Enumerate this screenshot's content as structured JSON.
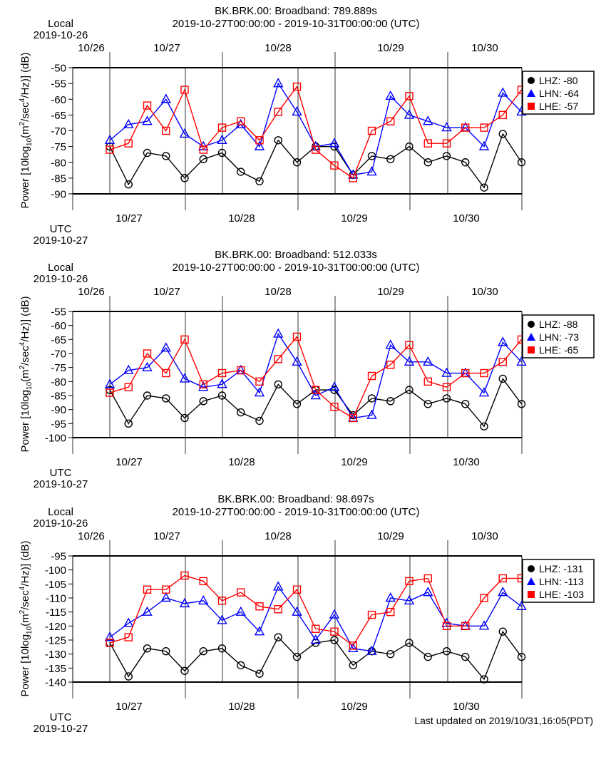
{
  "colors": {
    "LHZ": "#000000",
    "LHN": "#0000ff",
    "LHE": "#ff0000"
  },
  "labels": {
    "local": "Local",
    "local_date": "2019-10-26",
    "utc": "UTC",
    "utc_date": "2019-10-27",
    "ylabel_prefix": "Power [10log",
    "ylabel_sub": "10",
    "ylabel_mid": "(m",
    "ylabel_sup1": "2",
    "ylabel_mid2": "/sec",
    "ylabel_sup2": "4",
    "ylabel_suffix": "/Hz)] (dB)",
    "local_ticks": [
      "10/26",
      "10/27",
      "10/28",
      "10/29",
      "10/30"
    ],
    "utc_ticks": [
      "10/27",
      "10/28",
      "10/29",
      "10/30"
    ]
  },
  "footer": "Last updated on 2019/10/31,16:05(PDT)",
  "chart_data": [
    {
      "type": "line",
      "title": "BK.BRK.00: Broadband: 789.889s",
      "subtitle": "2019-10-27T00:00:00 - 2019-10-31T00:00:00 (UTC)",
      "ylim": [
        -90,
        -50
      ],
      "yticks": [
        -50,
        -55,
        -60,
        -65,
        -70,
        -75,
        -80,
        -85,
        -90
      ],
      "series": [
        {
          "name": "LHZ",
          "legend": "LHZ: -80",
          "marker": "circle",
          "values": [
            -75,
            -87,
            -77,
            -78,
            -85,
            -79,
            -77,
            -83,
            -86,
            -73,
            -80,
            -75,
            -75,
            -84,
            -78,
            -79,
            -75,
            -80,
            -78,
            -80,
            -88,
            -71,
            -80
          ]
        },
        {
          "name": "LHN",
          "legend": "LHN: -64",
          "marker": "triangle",
          "values": [
            -73,
            -68,
            -67,
            -60,
            -71,
            -75,
            -73,
            -68,
            -75,
            -55,
            -64,
            -75,
            -74,
            -84,
            -83,
            -59,
            -65,
            -67,
            -69,
            -69,
            -75,
            -58,
            -64
          ]
        },
        {
          "name": "LHE",
          "legend": "LHE: -57",
          "marker": "square",
          "values": [
            -76,
            -74,
            -62,
            -70,
            -57,
            -76,
            -69,
            -67,
            -73,
            -64,
            -56,
            -76,
            -81,
            -85,
            -70,
            -67,
            -59,
            -74,
            -74,
            -69,
            -69,
            -65,
            -57
          ]
        }
      ]
    },
    {
      "type": "line",
      "title": "BK.BRK.00: Broadband: 512.033s",
      "subtitle": "2019-10-27T00:00:00 - 2019-10-31T00:00:00 (UTC)",
      "ylim": [
        -100,
        -55
      ],
      "yticks": [
        -55,
        -60,
        -65,
        -70,
        -75,
        -80,
        -85,
        -90,
        -95,
        -100
      ],
      "series": [
        {
          "name": "LHZ",
          "legend": "LHZ: -88",
          "marker": "circle",
          "values": [
            -83,
            -95,
            -85,
            -86,
            -93,
            -87,
            -85,
            -91,
            -94,
            -81,
            -88,
            -83,
            -83,
            -92,
            -86,
            -87,
            -83,
            -88,
            -86,
            -88,
            -96,
            -79,
            -88
          ]
        },
        {
          "name": "LHN",
          "legend": "LHN: -73",
          "marker": "triangle",
          "values": [
            -81,
            -76,
            -75,
            -68,
            -79,
            -82,
            -81,
            -76,
            -84,
            -63,
            -73,
            -85,
            -82,
            -93,
            -92,
            -67,
            -73,
            -73,
            -77,
            -77,
            -84,
            -66,
            -73
          ]
        },
        {
          "name": "LHE",
          "legend": "LHE: -65",
          "marker": "square",
          "values": [
            -84,
            -82,
            -70,
            -77,
            -65,
            -81,
            -77,
            -76,
            -80,
            -72,
            -64,
            -83,
            -89,
            -93,
            -78,
            -74,
            -67,
            -80,
            -82,
            -77,
            -77,
            -73,
            -65
          ]
        }
      ]
    },
    {
      "type": "line",
      "title": "BK.BRK.00: Broadband: 98.697s",
      "subtitle": "2019-10-27T00:00:00 - 2019-10-31T00:00:00 (UTC)",
      "ylim": [
        -140,
        -95
      ],
      "yticks": [
        -95,
        -100,
        -105,
        -110,
        -115,
        -120,
        -125,
        -130,
        -135,
        -140
      ],
      "series": [
        {
          "name": "LHZ",
          "legend": "LHZ: -131",
          "marker": "circle",
          "values": [
            -126,
            -138,
            -128,
            -129,
            -136,
            -129,
            -128,
            -134,
            -137,
            -124,
            -131,
            -126,
            -125,
            -134,
            -129,
            -130,
            -126,
            -131,
            -129,
            -131,
            -139,
            -122,
            -131
          ]
        },
        {
          "name": "LHN",
          "legend": "LHN: -113",
          "marker": "triangle",
          "values": [
            -124,
            -119,
            -115,
            -110,
            -112,
            -111,
            -118,
            -115,
            -122,
            -106,
            -115,
            -125,
            -116,
            -128,
            -129,
            -110,
            -111,
            -108,
            -119,
            -120,
            -120,
            -108,
            -113
          ]
        },
        {
          "name": "LHE",
          "legend": "LHE: -103",
          "marker": "square",
          "values": [
            -126,
            -124,
            -107,
            -107,
            -102,
            -104,
            -111,
            -108,
            -113,
            -114,
            -107,
            -121,
            -122,
            -127,
            -116,
            -115,
            -104,
            -103,
            -120,
            -120,
            -110,
            -103,
            -103
          ]
        }
      ]
    }
  ]
}
